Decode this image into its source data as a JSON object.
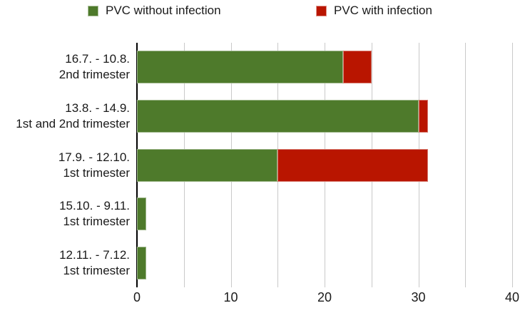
{
  "legend": {
    "items": [
      {
        "label": "PVC without infection",
        "color": "#4E7A2B"
      },
      {
        "label": "PVC with infection",
        "color": "#B91500"
      }
    ]
  },
  "chart_data": {
    "type": "bar",
    "orientation": "horizontal",
    "stacked": true,
    "title": "",
    "xlabel": "",
    "ylabel": "",
    "categories": [
      [
        "16.7. - 10.8.",
        "2nd trimester"
      ],
      [
        "13.8. - 14.9.",
        "1st and 2nd trimester"
      ],
      [
        "17.9. - 12.10.",
        "1st trimester"
      ],
      [
        "15.10. - 9.11.",
        "1st trimester"
      ],
      [
        "12.11. - 7.12.",
        "1st trimester"
      ]
    ],
    "series": [
      {
        "name": "PVC without infection",
        "color": "#4E7A2B",
        "values": [
          22,
          30,
          15,
          1,
          1
        ]
      },
      {
        "name": "PVC with infection",
        "color": "#B91500",
        "values": [
          3,
          1,
          16,
          0,
          0
        ]
      }
    ],
    "xlim": [
      0,
      40
    ],
    "x_ticks": [
      0,
      10,
      20,
      30,
      40
    ],
    "x_tick_labels": [
      "0",
      "10",
      "20",
      "30",
      "40"
    ],
    "gridline_step": 5,
    "grid": true,
    "legend_position": "top",
    "colors": {
      "grid": "#c9c9c9",
      "axis": "#000000",
      "text": "#1a1a1a"
    }
  }
}
